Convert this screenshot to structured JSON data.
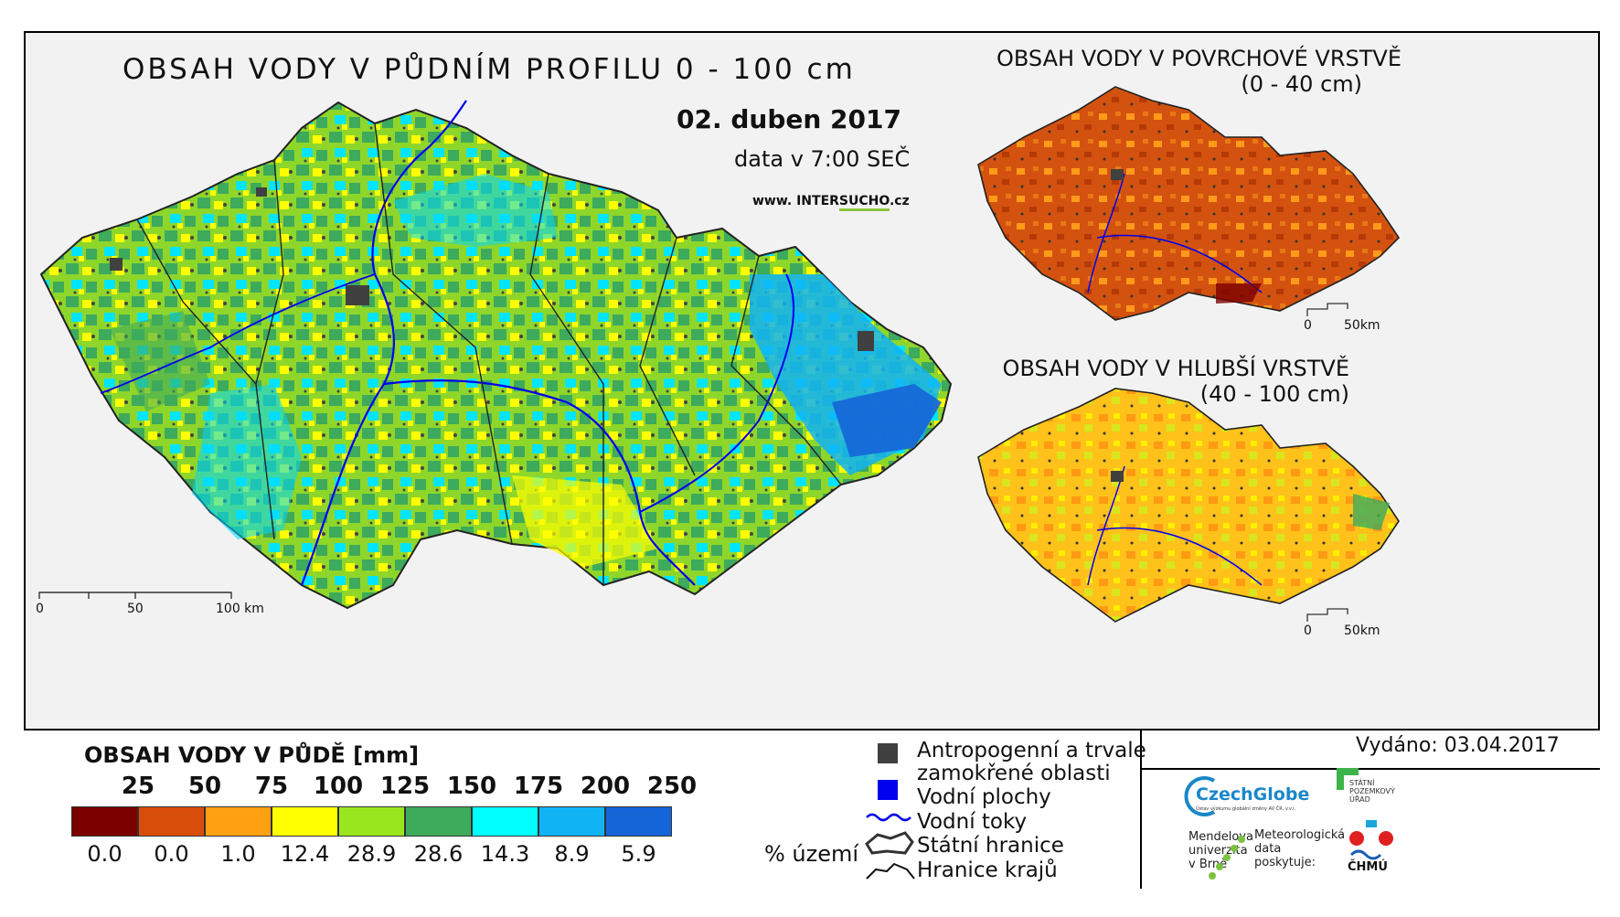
{
  "main_map": {
    "title": "OBSAH VODY V PŮDNÍM PROFILU 0 - 100 cm",
    "date": "02. duben 2017",
    "time": "data v 7:00 SEČ",
    "website_prefix": "www. INTER",
    "website_highlight": "SUCHO",
    "website_suffix": ".cz",
    "scalebar": {
      "labels": [
        "0",
        "50",
        "100 km"
      ]
    }
  },
  "inset_surface": {
    "title": "OBSAH VODY V POVRCHOVÉ VRSTVĚ",
    "subtitle": "(0 - 40 cm)",
    "scalebar": {
      "labels": [
        "0",
        "50km"
      ]
    }
  },
  "inset_deep": {
    "title": "OBSAH VODY V HLUBŠÍ VRSTVĚ",
    "subtitle": "(40 - 100 cm)",
    "scalebar": {
      "labels": [
        "0",
        "50km"
      ]
    }
  },
  "legend": {
    "title": "OBSAH VODY V PŮDĚ [mm]",
    "ticks": [
      "25",
      "50",
      "75",
      "100",
      "125",
      "150",
      "175",
      "200",
      "250"
    ],
    "classes": [
      {
        "color": "#7b0000",
        "percent": "0.0"
      },
      {
        "color": "#d94d0a",
        "percent": "0.0"
      },
      {
        "color": "#ffa012",
        "percent": "1.0"
      },
      {
        "color": "#ffff00",
        "percent": "12.4"
      },
      {
        "color": "#99e61e",
        "percent": "28.9"
      },
      {
        "color": "#3daa5c",
        "percent": "28.6"
      },
      {
        "color": "#00ffff",
        "percent": "14.3"
      },
      {
        "color": "#10b4f5",
        "percent": "8.9"
      },
      {
        "color": "#1565d8",
        "percent": "5.9"
      }
    ],
    "percent_unit": "% území"
  },
  "symbols": {
    "anthropogenic": {
      "line1": "Antropogenní a trvale",
      "line2": "zamokřené oblasti",
      "color": "#404040"
    },
    "water_bodies": {
      "label": "Vodní plochy",
      "color": "#0000ee"
    },
    "streams": {
      "label": "Vodní toky",
      "color": "#0000ee"
    },
    "state_border": {
      "label": "Státní hranice"
    },
    "region_border": {
      "label": "Hranice krajů"
    }
  },
  "issued": "Vydáno: 03.04.2017",
  "logos": {
    "czechglobe": "CzechGlobe",
    "czechglobe_sub": "Ústav výzkumu globální změny AV ČR, v.v.i.",
    "spu_line1": "STÁTNÍ",
    "spu_line2": "POZEMKOVÝ",
    "spu_line3": "ÚŘAD",
    "mendelu_line1": "Mendelova",
    "mendelu_line2": "univerzita",
    "mendelu_line3": "v Brně",
    "meteo_line1": "Meteorologická",
    "meteo_line2": "data",
    "meteo_line3": "poskytuje:",
    "chmu": "ČHMÚ"
  }
}
